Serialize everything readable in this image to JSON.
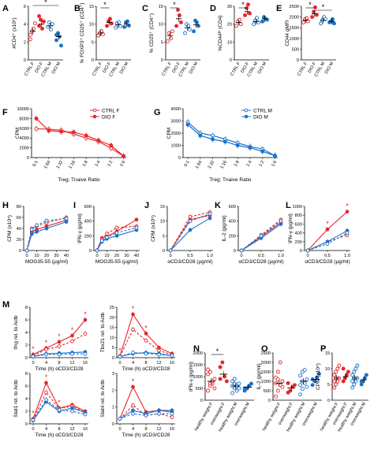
{
  "colors": {
    "red": "#e8262a",
    "blue": "#1a73c9",
    "black": "#000000"
  },
  "chart_data": [
    {
      "panel": "A",
      "type": "scatter",
      "ylabel": "#CD4⁺ (x10⁵)",
      "categories": [
        "CTRL F",
        "DIO F",
        "CTRL M",
        "DIO M"
      ],
      "yticks": [
        "0",
        "2",
        "4",
        "6"
      ],
      "ylim": [
        0,
        6
      ],
      "series": [
        {
          "values": [
            3.2,
            4.0,
            3.8,
            2.6
          ],
          "points": [
            [
              2.3,
              3.2,
              3.5,
              4.1,
              2.8
            ],
            [
              3.8,
              4.5,
              3.5,
              4.3,
              4.9
            ],
            [
              3.7,
              4.2,
              3.4,
              4.0
            ],
            [
              2.2,
              3.0,
              2.6,
              1.6,
              2.8
            ]
          ]
        }
      ],
      "annotations": [
        "*"
      ]
    },
    {
      "panel": "B",
      "type": "scatter",
      "ylabel": "% FOXP3⁺ CD25⁺ (CD4⁺)",
      "categories": [
        "CTRL F",
        "DIO F",
        "CTRL M",
        "DIO M"
      ],
      "yticks": [
        "0",
        "5",
        "10",
        "15"
      ],
      "ylim": [
        0,
        15
      ],
      "series": [
        {
          "values": [
            7.5,
            10.5,
            9.8,
            10.0
          ],
          "points": [
            [
              6.8,
              7.5,
              8.1,
              7.2
            ],
            [
              9.5,
              10.8,
              11.5,
              10.2
            ],
            [
              9.0,
              10.2,
              10.6,
              9.5
            ],
            [
              9.2,
              10.5,
              10.8,
              9.6
            ]
          ]
        }
      ],
      "annotations": [
        "*"
      ]
    },
    {
      "panel": "C",
      "type": "scatter",
      "ylabel": "% CD25⁺ (CD4⁺)",
      "categories": [
        "CTRL F",
        "DIO F",
        "CTRL M",
        "DIO M"
      ],
      "yticks": [
        "0",
        "5",
        "10",
        "15"
      ],
      "ylim": [
        0,
        15
      ],
      "series": [
        {
          "values": [
            6.8,
            11.5,
            9.0,
            9.8
          ],
          "points": [
            [
              5.2,
              7.5,
              6.0,
              8.0
            ],
            [
              9.5,
              14.0,
              12.5,
              10.5
            ],
            [
              7.5,
              10.0,
              9.5,
              8.5
            ],
            [
              8.0,
              11.0,
              10.5,
              9.5
            ]
          ]
        }
      ],
      "annotations": [
        "*"
      ]
    },
    {
      "panel": "D",
      "type": "scatter",
      "ylabel": "%CD44ʰⁱ (CD4)",
      "categories": [
        "CTRL F",
        "DIO F",
        "CTRL M",
        "DIO M"
      ],
      "yticks": [
        "0",
        "10",
        "20",
        "30"
      ],
      "ylim": [
        0,
        30
      ],
      "series": [
        {
          "values": [
            21.0,
            27.0,
            21.5,
            23.0
          ],
          "points": [
            [
              19.0,
              21.5,
              22.5,
              20.0
            ],
            [
              25.0,
              29.0,
              31.0,
              26.0
            ],
            [
              20.0,
              22.0,
              23.5,
              21.0
            ],
            [
              21.5,
              24.0,
              23.0,
              22.5
            ]
          ]
        }
      ],
      "annotations": [
        "*"
      ]
    },
    {
      "panel": "E",
      "type": "scatter",
      "ylabel": "CD44 gMFI",
      "categories": [
        "CTRL F",
        "DIO F",
        "CTRL M",
        "DIO M"
      ],
      "yticks": [
        "0",
        "500",
        "1000",
        "1500",
        "2000",
        "2500"
      ],
      "ylim": [
        0,
        2500
      ],
      "series": [
        {
          "values": [
            1850,
            2150,
            1850,
            1800
          ],
          "points": [
            [
              1750,
              1900,
              1950,
              1800
            ],
            [
              2000,
              2250,
              2450,
              2100
            ],
            [
              1700,
              1850,
              2000,
              1900
            ],
            [
              1750,
              1800,
              1900,
              1700
            ]
          ]
        }
      ],
      "annotations": [
        "*",
        "*"
      ]
    },
    {
      "panel": "F",
      "type": "line",
      "ylabel": "CPM",
      "xlabel": "Treg: Tnaive Ratio",
      "categories": [
        "0:1",
        "1:64",
        "1:32",
        "1:16",
        "1:8",
        "1:4",
        "1:2",
        "1:0"
      ],
      "yticks": [
        "0",
        "2000",
        "4000",
        "6000",
        "8000",
        "10000"
      ],
      "ylim": [
        0,
        10000
      ],
      "series": [
        {
          "name": "CTRL F",
          "values": [
            5900,
            5800,
            5600,
            4800,
            4000,
            3300,
            1900,
            300
          ]
        },
        {
          "name": "DIO F",
          "values": [
            8000,
            5500,
            5300,
            5200,
            4500,
            3500,
            2500,
            300
          ]
        }
      ]
    },
    {
      "panel": "G",
      "type": "line",
      "ylabel": "CPM",
      "xlabel": "Treg: Tnaive Ratio",
      "categories": [
        "0:1",
        "1:64",
        "1:32",
        "1:16",
        "1:8",
        "1:4",
        "1:2",
        "1:0"
      ],
      "yticks": [
        "0",
        "1000",
        "2000",
        "3000",
        "4000"
      ],
      "ylim": [
        0,
        4000
      ],
      "series": [
        {
          "name": "CTRL M",
          "values": [
            2900,
            2000,
            1800,
            1500,
            1200,
            900,
            700,
            150
          ]
        },
        {
          "name": "DIO M",
          "values": [
            2700,
            1800,
            1500,
            1300,
            1000,
            800,
            500,
            150
          ]
        }
      ]
    },
    {
      "panel": "H",
      "type": "line",
      "ylabel": "CPM (x10⁴)",
      "xlabel": "MOG35-55 (µg/ml)",
      "x": [
        0,
        5,
        10,
        20,
        40
      ],
      "xticks": [
        "0",
        "10",
        "20",
        "30",
        "40"
      ],
      "yticks": [
        "0",
        "20",
        "40",
        "60",
        "80"
      ],
      "ylim": [
        0,
        80
      ],
      "series": [
        {
          "values": [
            0,
            34,
            38,
            44,
            55
          ]
        },
        {
          "values": [
            0,
            40,
            44,
            50,
            60
          ]
        },
        {
          "values": [
            0,
            30,
            34,
            40,
            52
          ]
        },
        {
          "values": [
            0,
            38,
            46,
            54,
            58
          ]
        }
      ]
    },
    {
      "panel": "I",
      "type": "line",
      "ylabel": "IFN-γ (pg/ml)",
      "xlabel": "MOG35-55 (µg/ml)",
      "x": [
        0,
        5,
        10,
        20,
        40
      ],
      "xticks": [
        "0",
        "10",
        "20",
        "30",
        "40"
      ],
      "yticks": [
        "0",
        "200",
        "400",
        "600"
      ],
      "ylim": [
        0,
        600
      ],
      "series": [
        {
          "values": [
            0,
            170,
            190,
            260,
            420
          ]
        },
        {
          "values": [
            0,
            150,
            230,
            310,
            330
          ]
        },
        {
          "values": [
            0,
            120,
            160,
            200,
            280
          ]
        },
        {
          "values": [
            0,
            130,
            180,
            240,
            310
          ]
        }
      ]
    },
    {
      "panel": "J",
      "type": "line",
      "ylabel": "CPM (x10⁵)",
      "xlabel": "αCD3/CD28 (µg/ml)",
      "x": [
        0,
        0.5,
        1.0
      ],
      "xticks": [
        "0",
        "0.5",
        "1.0"
      ],
      "yticks": [
        "0",
        "5",
        "10",
        "15"
      ],
      "ylim": [
        0,
        15
      ],
      "series": [
        {
          "values": [
            0,
            10.5,
            12.0
          ]
        },
        {
          "values": [
            0,
            11.5,
            13.0
          ]
        },
        {
          "values": [
            0,
            7.0,
            11.0
          ]
        },
        {
          "values": [
            0,
            10.0,
            12.5
          ]
        }
      ]
    },
    {
      "panel": "K",
      "type": "line",
      "ylabel": "IL-2 (pg/ml)",
      "xlabel": "αCD3/CD28 (µg/ml)",
      "x": [
        0,
        0.5,
        1.0
      ],
      "xticks": [
        "0",
        "0.5",
        "1.0"
      ],
      "yticks": [
        "0",
        "200",
        "400",
        "600"
      ],
      "ylim": [
        0,
        600
      ],
      "series": [
        {
          "values": [
            0,
            190,
            380
          ]
        },
        {
          "values": [
            0,
            210,
            420
          ]
        },
        {
          "values": [
            0,
            170,
            360
          ]
        },
        {
          "values": [
            0,
            200,
            400
          ]
        }
      ]
    },
    {
      "panel": "L",
      "type": "line",
      "ylabel": "IFN-γ (pg/ml)",
      "xlabel": "αCD3/CD28 (µg/ml)",
      "x": [
        0,
        0.5,
        1.0
      ],
      "xticks": [
        "0",
        "0.5",
        "1.0"
      ],
      "yticks": [
        "0",
        "200",
        "400",
        "600",
        "800",
        "1000"
      ],
      "ylim": [
        0,
        1000
      ],
      "series": [
        {
          "values": [
            0,
            480,
            880
          ]
        },
        {
          "values": [
            0,
            200,
            350
          ]
        },
        {
          "values": [
            0,
            200,
            450
          ]
        },
        {
          "values": [
            0,
            150,
            400
          ]
        }
      ],
      "annotations": [
        "*",
        "*"
      ]
    },
    {
      "panel": "M1",
      "type": "line",
      "ylabel": "Ifng rel. to Actb",
      "xlabel": "Time (h) αCD3/CD28",
      "x": [
        0,
        4,
        8,
        12,
        16
      ],
      "xticks": [
        "0",
        "4",
        "8",
        "12",
        "16"
      ],
      "yticks": [
        "0",
        "2",
        "4",
        "6",
        "8"
      ],
      "ylim": [
        0,
        8
      ],
      "series": [
        {
          "values": [
            0.5,
            1.5,
            2.5,
            3.5,
            6.0
          ]
        },
        {
          "values": [
            0.3,
            1.3,
            1.8,
            2.6,
            3.8
          ]
        },
        {
          "values": [
            0.2,
            0.6,
            0.7,
            0.8,
            0.9
          ]
        },
        {
          "values": [
            0.2,
            0.5,
            0.5,
            0.6,
            0.6
          ]
        }
      ],
      "annotations": [
        "*",
        "*",
        "*",
        "*",
        "*"
      ]
    },
    {
      "panel": "M2",
      "type": "line",
      "ylabel": "Tbx21 rel. to Actb",
      "xlabel": "Time (h) αCD3/CD28",
      "x": [
        0,
        4,
        8,
        12,
        16
      ],
      "xticks": [
        "0",
        "4",
        "8",
        "12",
        "16"
      ],
      "yticks": [
        "0",
        "5",
        "10",
        "15",
        "20",
        "25"
      ],
      "ylim": [
        0,
        25
      ],
      "series": [
        {
          "values": [
            0.8,
            21.5,
            12.0,
            5.0,
            2.0
          ]
        },
        {
          "values": [
            0.6,
            14.0,
            8.5,
            3.5,
            1.5
          ]
        },
        {
          "values": [
            0.5,
            2.0,
            2.5,
            2.0,
            1.0
          ]
        },
        {
          "values": [
            0.5,
            2.5,
            2.0,
            1.5,
            1.0
          ]
        }
      ],
      "annotations": [
        "*",
        "*",
        "*"
      ]
    },
    {
      "panel": "M3",
      "type": "line",
      "ylabel": "Stat1 rel. to Actb",
      "xlabel": "Time (h) αCD3/CD28",
      "x": [
        0,
        4,
        8,
        12,
        16
      ],
      "xticks": [
        "0",
        "4",
        "8",
        "12",
        "16"
      ],
      "yticks": [
        "0",
        "2",
        "4",
        "6",
        "8"
      ],
      "ylim": [
        0,
        8
      ],
      "series": [
        {
          "values": [
            0.8,
            6.5,
            2.5,
            3.0,
            2.0
          ]
        },
        {
          "values": [
            0.6,
            5.0,
            2.4,
            2.8,
            1.8
          ]
        },
        {
          "values": [
            0.5,
            3.5,
            2.0,
            2.5,
            1.8
          ]
        },
        {
          "values": [
            0.6,
            3.8,
            2.2,
            2.0,
            1.5
          ]
        }
      ],
      "annotations": [
        "*",
        "*",
        "*"
      ]
    },
    {
      "panel": "M4",
      "type": "line",
      "ylabel": "Stat4 rel. to Actb",
      "xlabel": "Time (h) αCD3/CD28",
      "x": [
        0,
        4,
        8,
        12,
        16
      ],
      "xticks": [
        "0",
        "4",
        "8",
        "12",
        "16"
      ],
      "yticks": [
        "0",
        "1",
        "2",
        "3"
      ],
      "ylim": [
        0,
        3
      ],
      "series": [
        {
          "values": [
            0.3,
            2.2,
            0.7,
            0.8,
            0.7
          ]
        },
        {
          "values": [
            0.3,
            1.1,
            0.5,
            0.6,
            0.4
          ]
        },
        {
          "values": [
            0.3,
            0.8,
            0.6,
            0.8,
            0.8
          ]
        },
        {
          "values": [
            0.3,
            0.6,
            0.5,
            0.6,
            0.6
          ]
        }
      ],
      "annotations": [
        "*"
      ]
    },
    {
      "panel": "N",
      "type": "scatter",
      "ylabel": "IFN-γ (pg/ml)",
      "categories": [
        "healthy weight F",
        "overweight F",
        "healthy weight M",
        "overweight M"
      ],
      "yticks": [
        "0",
        "500",
        "1000",
        "1500",
        "2000"
      ],
      "ylim": [
        0,
        2000
      ],
      "series": [
        {
          "values": [
            800,
            1100,
            600,
            550
          ],
          "points": [
            [
              400,
              600,
              700,
              900,
              1100,
              1200,
              800,
              500,
              1300,
              700
            ],
            [
              1400,
              1600,
              1000,
              800,
              900
            ],
            [
              300,
              500,
              600,
              700,
              800,
              900,
              400,
              500,
              600,
              700
            ],
            [
              400,
              500,
              600,
              700,
              500
            ]
          ]
        }
      ],
      "annotations": [
        "*"
      ]
    },
    {
      "panel": "O",
      "type": "scatter",
      "ylabel": "IL-2 (pg/ml)",
      "categories": [
        "healthy weight F",
        "overweight F",
        "healthy weight M",
        "overweight M"
      ],
      "yticks": [
        "0",
        "500",
        "1000",
        "1500",
        "2000",
        "2500"
      ],
      "ylim": [
        0,
        2500
      ],
      "series": [
        {
          "values": [
            900,
            650,
            1000,
            1100
          ],
          "points": [
            [
              200,
              500,
              800,
              1000,
              1200,
              1500,
              2000,
              700,
              900,
              1100
            ],
            [
              400,
              500,
              700,
              800,
              900
            ],
            [
              300,
              600,
              900,
              1100,
              1300,
              1500,
              1600,
              700,
              800,
              1000
            ],
            [
              800,
              1000,
              1200,
              1400,
              1100
            ]
          ]
        }
      ]
    },
    {
      "panel": "P",
      "type": "scatter",
      "ylabel": "CPM (x10⁴)",
      "categories": [
        "healthy weight F",
        "overweight F",
        "healthy weight M",
        "overweight M"
      ],
      "yticks": [
        "0",
        "5",
        "10",
        "15"
      ],
      "ylim": [
        0,
        15
      ],
      "series": [
        {
          "values": [
            7.0,
            7.5,
            7.0,
            6.5
          ],
          "points": [
            [
              4,
              5,
              6,
              7,
              8,
              9,
              10,
              11,
              6,
              7
            ],
            [
              6,
              7,
              8,
              9,
              10
            ],
            [
              4,
              5,
              6,
              7,
              8,
              9,
              10,
              11,
              6,
              7
            ],
            [
              5,
              6,
              7,
              8,
              6
            ]
          ]
        }
      ]
    }
  ],
  "legends": {
    "F": [
      {
        "label": "CTRL F"
      },
      {
        "label": "DIO F"
      }
    ],
    "G": [
      {
        "label": "CTRL M"
      },
      {
        "label": "DIO M"
      }
    ]
  }
}
